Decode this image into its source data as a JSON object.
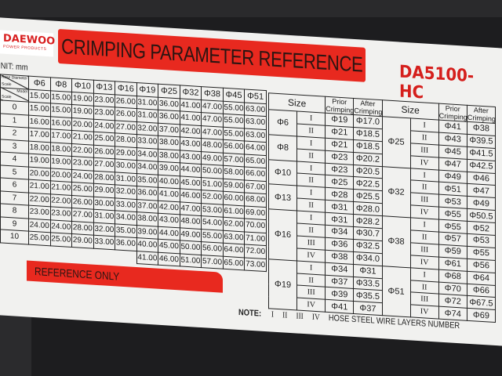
{
  "brand": {
    "name": "DAEWOO",
    "tagline": "POWER PRODUCTS"
  },
  "title": "CRIMPING PARAMETER REFERENCE",
  "model": "DA5100-HC",
  "unit": "UNIT: mm",
  "left_table": {
    "corner": {
      "top": "Hose Diameter",
      "bottom": "Scale"
    },
    "model_corner": {
      "top": "Model",
      "bottom": "Scale"
    },
    "headers": [
      "Φ6",
      "Φ8",
      "Φ10",
      "Φ13",
      "Φ16",
      "Φ19",
      "Φ25",
      "Φ32",
      "Φ38",
      "Φ45",
      "Φ51"
    ],
    "model_row": [
      "15.00",
      "15.00",
      "19.00",
      "23.00",
      "26.00",
      "31.00",
      "36.00",
      "41.00",
      "47.00",
      "55.00",
      "63.00"
    ],
    "rows": [
      {
        "scale": "0",
        "values": [
          "15.00",
          "15.00",
          "19.00",
          "23.00",
          "26.00",
          "31.00",
          "36.00",
          "41.00",
          "47.00",
          "55.00",
          "63.00"
        ]
      },
      {
        "scale": "1",
        "values": [
          "16.00",
          "16.00",
          "20.00",
          "24.00",
          "27.00",
          "32.00",
          "37.00",
          "42.00",
          "47.00",
          "55.00",
          "63.00"
        ]
      },
      {
        "scale": "2",
        "values": [
          "17.00",
          "17.00",
          "21.00",
          "25.00",
          "28.00",
          "33.00",
          "38.00",
          "43.00",
          "48.00",
          "56.00",
          "64.00"
        ]
      },
      {
        "scale": "3",
        "values": [
          "18.00",
          "18.00",
          "22.00",
          "26.00",
          "29.00",
          "34.00",
          "38.00",
          "43.00",
          "49.00",
          "57.00",
          "65.00"
        ]
      },
      {
        "scale": "4",
        "values": [
          "19.00",
          "19.00",
          "23.00",
          "27.00",
          "30.00",
          "34.00",
          "39.00",
          "44.00",
          "50.00",
          "58.00",
          "66.00"
        ]
      },
      {
        "scale": "5",
        "values": [
          "20.00",
          "20.00",
          "24.00",
          "28.00",
          "31.00",
          "35.00",
          "40.00",
          "45.00",
          "51.00",
          "59.00",
          "67.00"
        ]
      },
      {
        "scale": "6",
        "values": [
          "21.00",
          "21.00",
          "25.00",
          "29.00",
          "32.00",
          "36.00",
          "41.00",
          "46.00",
          "52.00",
          "60.00",
          "68.00"
        ]
      },
      {
        "scale": "7",
        "values": [
          "22.00",
          "22.00",
          "26.00",
          "30.00",
          "33.00",
          "37.00",
          "42.00",
          "47.00",
          "53.00",
          "61.00",
          "69.00"
        ]
      },
      {
        "scale": "8",
        "values": [
          "23.00",
          "23.00",
          "27.00",
          "31.00",
          "34.00",
          "38.00",
          "43.00",
          "48.00",
          "54.00",
          "62.00",
          "70.00"
        ]
      },
      {
        "scale": "9",
        "values": [
          "24.00",
          "24.00",
          "28.00",
          "32.00",
          "35.00",
          "39.00",
          "44.00",
          "49.00",
          "55.00",
          "63.00",
          "71.00"
        ]
      },
      {
        "scale": "10",
        "values": [
          "25.00",
          "25.00",
          "29.00",
          "33.00",
          "36.00",
          "40.00",
          "45.00",
          "50.00",
          "56.00",
          "64.00",
          "72.00"
        ]
      },
      {
        "scale": "",
        "values": [
          "",
          "",
          "",
          "",
          "",
          "41.00",
          "46.00",
          "51.00",
          "57.00",
          "65.00",
          "73.00"
        ]
      }
    ]
  },
  "right_table": {
    "headers": {
      "size": "Size",
      "prior": "Prior Crimping",
      "after": "After Crimping"
    },
    "left_groups": [
      {
        "size": "Φ6",
        "rows": [
          [
            "I",
            "Φ19",
            "Φ17.0"
          ],
          [
            "II",
            "Φ21",
            "Φ18.5"
          ]
        ]
      },
      {
        "size": "Φ8",
        "rows": [
          [
            "I",
            "Φ21",
            "Φ18.5"
          ],
          [
            "II",
            "Φ23",
            "Φ20.2"
          ]
        ]
      },
      {
        "size": "Φ10",
        "rows": [
          [
            "I",
            "Φ23",
            "Φ20.5"
          ],
          [
            "II",
            "Φ25",
            "Φ22.5"
          ]
        ]
      },
      {
        "size": "Φ13",
        "rows": [
          [
            "I",
            "Φ28",
            "Φ25.5"
          ],
          [
            "II",
            "Φ31",
            "Φ28.0"
          ]
        ]
      },
      {
        "size": "Φ16",
        "rows": [
          [
            "I",
            "Φ31",
            "Φ28.2"
          ],
          [
            "II",
            "Φ34",
            "Φ30.7"
          ],
          [
            "III",
            "Φ36",
            "Φ32.5"
          ],
          [
            "IV",
            "Φ38",
            "Φ34.0"
          ]
        ]
      },
      {
        "size": "Φ19",
        "rows": [
          [
            "I",
            "Φ34",
            "Φ31"
          ],
          [
            "II",
            "Φ37",
            "Φ33.5"
          ],
          [
            "III",
            "Φ39",
            "Φ35.5"
          ],
          [
            "IV",
            "Φ41",
            "Φ37"
          ]
        ]
      }
    ],
    "right_groups": [
      {
        "size": "Φ25",
        "rows": [
          [
            "I",
            "Φ41",
            "Φ38"
          ],
          [
            "II",
            "Φ43",
            "Φ39.5"
          ],
          [
            "III",
            "Φ45",
            "Φ41.5"
          ],
          [
            "IV",
            "Φ47",
            "Φ42.5"
          ]
        ]
      },
      {
        "size": "Φ32",
        "rows": [
          [
            "I",
            "Φ49",
            "Φ46"
          ],
          [
            "II",
            "Φ51",
            "Φ47"
          ],
          [
            "III",
            "Φ53",
            "Φ49"
          ],
          [
            "IV",
            "Φ55",
            "Φ50.5"
          ]
        ]
      },
      {
        "size": "Φ38",
        "rows": [
          [
            "I",
            "Φ55",
            "Φ52"
          ],
          [
            "II",
            "Φ57",
            "Φ53"
          ],
          [
            "III",
            "Φ59",
            "Φ55"
          ],
          [
            "IV",
            "Φ61",
            "Φ56"
          ]
        ]
      },
      {
        "size": "Φ51",
        "rows": [
          [
            "I",
            "Φ68",
            "Φ64"
          ],
          [
            "II",
            "Φ70",
            "Φ66"
          ],
          [
            "III",
            "Φ72",
            "Φ67.5"
          ],
          [
            "IV",
            "Φ74",
            "Φ69"
          ]
        ]
      }
    ]
  },
  "reference_only": "REFERENCE ONLY",
  "note": {
    "label": "NOTE:",
    "numerals": [
      "I",
      "II",
      "III",
      "IV"
    ],
    "text": "HOSE STEEL WIRE LAYERS NUMBER"
  },
  "colors": {
    "accent_red": "#e8291f",
    "label_bg": "#f1f1ef",
    "background": "#1d1d1f"
  }
}
